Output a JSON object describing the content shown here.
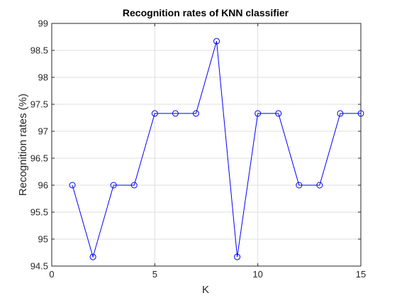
{
  "chart_data": {
    "type": "line",
    "title": "Recognition rates of KNN classifier",
    "xlabel": "K",
    "ylabel": "Recognition rates (%)",
    "xlim": [
      0,
      15
    ],
    "ylim": [
      94.5,
      99
    ],
    "xticks": [
      0,
      5,
      10,
      15
    ],
    "yticks": [
      94.5,
      95,
      95.5,
      96,
      96.5,
      97,
      97.5,
      98,
      98.5,
      99
    ],
    "xtick_labels": [
      "0",
      "5",
      "10",
      "15"
    ],
    "ytick_labels": [
      "94.5",
      "95",
      "95.5",
      "96",
      "96.5",
      "97",
      "97.5",
      "98",
      "98.5",
      "99"
    ],
    "grid": true,
    "marker": "circle",
    "series": [
      {
        "x": [
          1,
          2,
          3,
          4,
          5,
          6,
          7,
          8,
          9,
          10,
          11,
          12,
          13,
          14,
          15
        ],
        "values": [
          96,
          94.67,
          96,
          96,
          97.33,
          97.33,
          97.33,
          98.67,
          94.67,
          97.33,
          97.33,
          96,
          96,
          97.33,
          97.33
        ],
        "color": "#0000ff"
      }
    ]
  },
  "colors": {
    "line": "#0000ff",
    "grid": "#dfdfdf",
    "axis": "#262626"
  }
}
